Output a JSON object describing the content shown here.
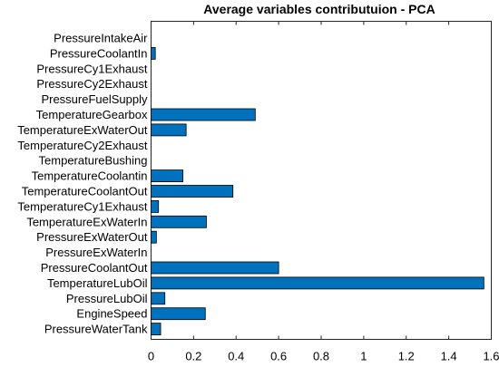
{
  "chart_data": {
    "type": "bar",
    "orientation": "horizontal",
    "title": "Average variables contributuion - PCA",
    "xlabel": "",
    "ylabel": "",
    "xlim": [
      0,
      1.6
    ],
    "xticks": [
      0,
      0.2,
      0.4,
      0.6,
      0.8,
      1,
      1.2,
      1.4,
      1.6
    ],
    "xtick_labels": [
      "0",
      "0.2",
      "0.4",
      "0.6",
      "0.8",
      "1",
      "1.2",
      "1.4",
      "1.6"
    ],
    "grid": false,
    "bar_color": "#0072BD",
    "categories": [
      "PressureIntakeAir",
      "PressureCoolantIn",
      "PressureCy1Exhaust",
      "PressureCy2Exhaust",
      "PressureFuelSupply",
      "TemperatureGearbox",
      "TemperatureExWaterOut",
      "TemperatureCy2Exhaust",
      "TemperatureBushing",
      "TemperatureCoolantin",
      "TemperatureCoolantOut",
      "TemperatureCy1Exhaust",
      "TemperatureExWaterIn",
      "PressureExWaterOut",
      "PressureExWaterIn",
      "PressureCoolantOut",
      "TemperatureLubOil",
      "PressureLubOil",
      "EngineSpeed",
      "PressureWaterTank"
    ],
    "values": [
      0,
      0.02,
      0,
      0,
      0,
      0.49,
      0.165,
      0,
      0,
      0.15,
      0.385,
      0.035,
      0.26,
      0.025,
      0,
      0.6,
      1.565,
      0.065,
      0.255,
      0.045
    ]
  }
}
